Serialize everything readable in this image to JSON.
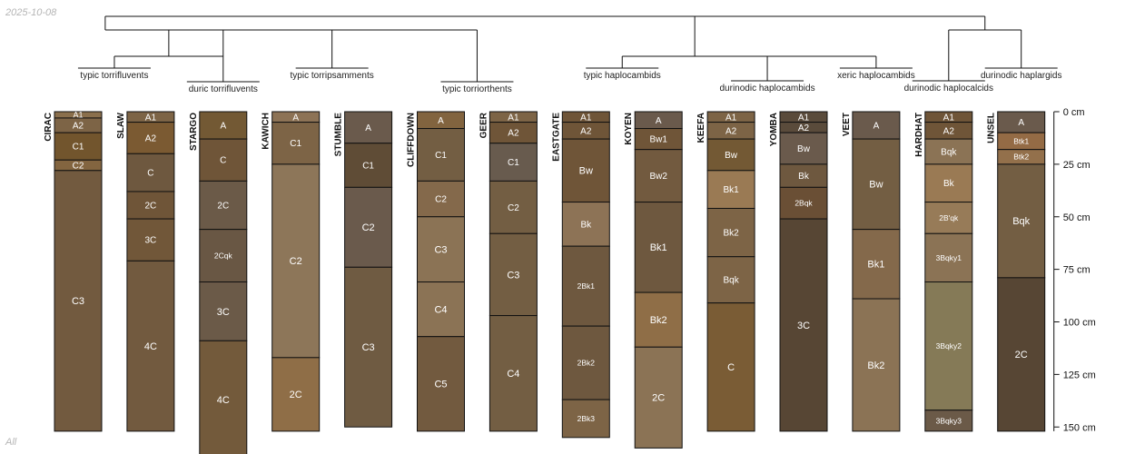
{
  "date_text": "2025-10-08",
  "footer_text": "All",
  "chart_data": {
    "type": "soil-profile-sketch",
    "depth_unit": "cm",
    "depth_axis": {
      "range": [
        0,
        160
      ],
      "ticks": [
        0,
        25,
        50,
        75,
        100,
        125,
        150
      ],
      "tick_labels": [
        "0 cm",
        "25 cm",
        "50 cm",
        "75 cm",
        "100 cm",
        "125 cm",
        "150 cm"
      ]
    },
    "subgroups": [
      {
        "label": "typic torrifluvents",
        "members": [
          "CIRAC",
          "SLAW"
        ]
      },
      {
        "label": "duric torrifluvents",
        "members": [
          "STARGO"
        ]
      },
      {
        "label": "typic torripsamments",
        "members": [
          "KAWICH",
          "STUMBLE"
        ]
      },
      {
        "label": "typic torriorthents",
        "members": [
          "CLIFFDOWN",
          "GEER"
        ]
      },
      {
        "label": "typic haplocambids",
        "members": [
          "EASTGATE",
          "KOYEN"
        ]
      },
      {
        "label": "durinodic haplocambids",
        "members": [
          "KEEFA",
          "YOMBA"
        ]
      },
      {
        "label": "xeric haplocambids",
        "members": [
          "VEET"
        ]
      },
      {
        "label": "durinodic haplocalcids",
        "members": [
          "HARDHAT"
        ]
      },
      {
        "label": "durinodic haplargids",
        "members": [
          "UNSEL"
        ]
      }
    ],
    "profiles": [
      {
        "name": "CIRAC",
        "horizons": [
          {
            "name": "A1",
            "top": 0,
            "bottom": 3,
            "color": "#8a6f4c"
          },
          {
            "name": "A2",
            "top": 3,
            "bottom": 10,
            "color": "#7d6446"
          },
          {
            "name": "C1",
            "top": 10,
            "bottom": 23,
            "color": "#72552d"
          },
          {
            "name": "C2",
            "top": 23,
            "bottom": 28,
            "color": "#836540"
          },
          {
            "name": "C3",
            "top": 28,
            "bottom": 152,
            "color": "#725a3f"
          }
        ]
      },
      {
        "name": "SLAW",
        "horizons": [
          {
            "name": "A1",
            "top": 0,
            "bottom": 5,
            "color": "#7d6446"
          },
          {
            "name": "A2",
            "top": 5,
            "bottom": 20,
            "color": "#7b5a32"
          },
          {
            "name": "C",
            "top": 20,
            "bottom": 38,
            "color": "#6e583f"
          },
          {
            "name": "2C",
            "top": 38,
            "bottom": 51,
            "color": "#6f5538"
          },
          {
            "name": "3C",
            "top": 51,
            "bottom": 71,
            "color": "#715739"
          },
          {
            "name": "4C",
            "top": 71,
            "bottom": 152,
            "color": "#725a3f"
          }
        ]
      },
      {
        "name": "STARGO",
        "horizons": [
          {
            "name": "A",
            "top": 0,
            "bottom": 13,
            "color": "#735934"
          },
          {
            "name": "C",
            "top": 13,
            "bottom": 33,
            "color": "#6f5538"
          },
          {
            "name": "2C",
            "top": 33,
            "bottom": 56,
            "color": "#6b5a48"
          },
          {
            "name": "2Cqk",
            "top": 56,
            "bottom": 81,
            "color": "#695744"
          },
          {
            "name": "3C",
            "top": 81,
            "bottom": 109,
            "color": "#6b5a48"
          },
          {
            "name": "4C",
            "top": 109,
            "bottom": 165,
            "color": "#735a3b"
          }
        ]
      },
      {
        "name": "KAWICH",
        "horizons": [
          {
            "name": "A",
            "top": 0,
            "bottom": 5,
            "color": "#8d7356"
          },
          {
            "name": "C1",
            "top": 5,
            "bottom": 25,
            "color": "#7d6446"
          },
          {
            "name": "C2",
            "top": 25,
            "bottom": 117,
            "color": "#8d7659"
          },
          {
            "name": "2C",
            "top": 117,
            "bottom": 152,
            "color": "#8f6e47"
          }
        ]
      },
      {
        "name": "STUMBLE",
        "horizons": [
          {
            "name": "A",
            "top": 0,
            "bottom": 15,
            "color": "#6a5a4c"
          },
          {
            "name": "C1",
            "top": 15,
            "bottom": 36,
            "color": "#5f4c36"
          },
          {
            "name": "C2",
            "top": 36,
            "bottom": 74,
            "color": "#6a5a4c"
          },
          {
            "name": "C3",
            "top": 74,
            "bottom": 150,
            "color": "#6f5b42"
          }
        ]
      },
      {
        "name": "CLIFFDOWN",
        "horizons": [
          {
            "name": "A",
            "top": 0,
            "bottom": 8,
            "color": "#82643f"
          },
          {
            "name": "C1",
            "top": 8,
            "bottom": 33,
            "color": "#735e43"
          },
          {
            "name": "C2",
            "top": 33,
            "bottom": 50,
            "color": "#84694b"
          },
          {
            "name": "C3",
            "top": 50,
            "bottom": 81,
            "color": "#8b7355"
          },
          {
            "name": "C4",
            "top": 81,
            "bottom": 107,
            "color": "#8b7355"
          },
          {
            "name": "C5",
            "top": 107,
            "bottom": 152,
            "color": "#725a3f"
          }
        ]
      },
      {
        "name": "GEER",
        "horizons": [
          {
            "name": "A1",
            "top": 0,
            "bottom": 5,
            "color": "#7d6446"
          },
          {
            "name": "A2",
            "top": 5,
            "bottom": 15,
            "color": "#6f5538"
          },
          {
            "name": "C1",
            "top": 15,
            "bottom": 33,
            "color": "#685b4e"
          },
          {
            "name": "C2",
            "top": 33,
            "bottom": 58,
            "color": "#735e43"
          },
          {
            "name": "C3",
            "top": 58,
            "bottom": 97,
            "color": "#735e43"
          },
          {
            "name": "C4",
            "top": 97,
            "bottom": 152,
            "color": "#735e43"
          }
        ]
      },
      {
        "name": "EASTGATE",
        "horizons": [
          {
            "name": "A1",
            "top": 0,
            "bottom": 5,
            "color": "#6f5538"
          },
          {
            "name": "A2",
            "top": 5,
            "bottom": 13,
            "color": "#6f5538"
          },
          {
            "name": "Bw",
            "top": 13,
            "bottom": 43,
            "color": "#6f5538"
          },
          {
            "name": "Bk",
            "top": 43,
            "bottom": 64,
            "color": "#8d7356"
          },
          {
            "name": "2Bk1",
            "top": 64,
            "bottom": 102,
            "color": "#6e583f"
          },
          {
            "name": "2Bk2",
            "top": 102,
            "bottom": 137,
            "color": "#6e583f"
          },
          {
            "name": "2Bk3",
            "top": 137,
            "bottom": 155,
            "color": "#7d6446"
          }
        ]
      },
      {
        "name": "KOYEN",
        "horizons": [
          {
            "name": "A",
            "top": 0,
            "bottom": 8,
            "color": "#6a5a4c"
          },
          {
            "name": "Bw1",
            "top": 8,
            "bottom": 18,
            "color": "#6f5538"
          },
          {
            "name": "Bw2",
            "top": 18,
            "bottom": 43,
            "color": "#725a3f"
          },
          {
            "name": "Bk1",
            "top": 43,
            "bottom": 86,
            "color": "#6e583f"
          },
          {
            "name": "Bk2",
            "top": 86,
            "bottom": 112,
            "color": "#8f6e47"
          },
          {
            "name": "2C",
            "top": 112,
            "bottom": 160,
            "color": "#8b7355"
          }
        ]
      },
      {
        "name": "KEEFA",
        "horizons": [
          {
            "name": "A1",
            "top": 0,
            "bottom": 5,
            "color": "#7d6446"
          },
          {
            "name": "A2",
            "top": 5,
            "bottom": 13,
            "color": "#7d6446"
          },
          {
            "name": "Bw",
            "top": 13,
            "bottom": 28,
            "color": "#735934"
          },
          {
            "name": "Bk1",
            "top": 28,
            "bottom": 46,
            "color": "#9a7a54"
          },
          {
            "name": "Bk2",
            "top": 46,
            "bottom": 69,
            "color": "#7d6446"
          },
          {
            "name": "Bqk",
            "top": 69,
            "bottom": 91,
            "color": "#7d6446"
          },
          {
            "name": "C",
            "top": 91,
            "bottom": 152,
            "color": "#7a5c35"
          }
        ]
      },
      {
        "name": "YOMBA",
        "horizons": [
          {
            "name": "A1",
            "top": 0,
            "bottom": 5,
            "color": "#5a4b3b"
          },
          {
            "name": "A2",
            "top": 5,
            "bottom": 10,
            "color": "#5a4b3b"
          },
          {
            "name": "Bw",
            "top": 10,
            "bottom": 25,
            "color": "#6a5a4c"
          },
          {
            "name": "Bk",
            "top": 25,
            "bottom": 36,
            "color": "#6e583f"
          },
          {
            "name": "2Bqk",
            "top": 36,
            "bottom": 51,
            "color": "#6a4f35"
          },
          {
            "name": "3C",
            "top": 51,
            "bottom": 152,
            "color": "#574634"
          }
        ]
      },
      {
        "name": "VEET",
        "horizons": [
          {
            "name": "A",
            "top": 0,
            "bottom": 13,
            "color": "#6a5a4c"
          },
          {
            "name": "Bw",
            "top": 13,
            "bottom": 56,
            "color": "#735e43"
          },
          {
            "name": "Bk1",
            "top": 56,
            "bottom": 89,
            "color": "#84694b"
          },
          {
            "name": "Bk2",
            "top": 89,
            "bottom": 152,
            "color": "#8b7355"
          }
        ]
      },
      {
        "name": "HARDHAT",
        "horizons": [
          {
            "name": "A1",
            "top": 0,
            "bottom": 5,
            "color": "#6f5538"
          },
          {
            "name": "A2",
            "top": 5,
            "bottom": 13,
            "color": "#6f5538"
          },
          {
            "name": "Bqk",
            "top": 13,
            "bottom": 25,
            "color": "#8b7355"
          },
          {
            "name": "Bk",
            "top": 25,
            "bottom": 43,
            "color": "#9a7a54"
          },
          {
            "name": "2B'qk",
            "top": 43,
            "bottom": 58,
            "color": "#977b58"
          },
          {
            "name": "3Bqky1",
            "top": 58,
            "bottom": 81,
            "color": "#8b7355"
          },
          {
            "name": "3Bqky2",
            "top": 81,
            "bottom": 142,
            "color": "#857a57"
          },
          {
            "name": "3Bqky3",
            "top": 142,
            "bottom": 152,
            "color": "#6b5a48"
          }
        ]
      },
      {
        "name": "UNSEL",
        "horizons": [
          {
            "name": "A",
            "top": 0,
            "bottom": 10,
            "color": "#6a5a4c"
          },
          {
            "name": "Btk1",
            "top": 10,
            "bottom": 18,
            "color": "#946b45"
          },
          {
            "name": "Btk2",
            "top": 18,
            "bottom": 25,
            "color": "#93704b"
          },
          {
            "name": "Bqk",
            "top": 25,
            "bottom": 79,
            "color": "#735e43"
          },
          {
            "name": "2C",
            "top": 79,
            "bottom": 152,
            "color": "#574634"
          }
        ]
      }
    ]
  }
}
